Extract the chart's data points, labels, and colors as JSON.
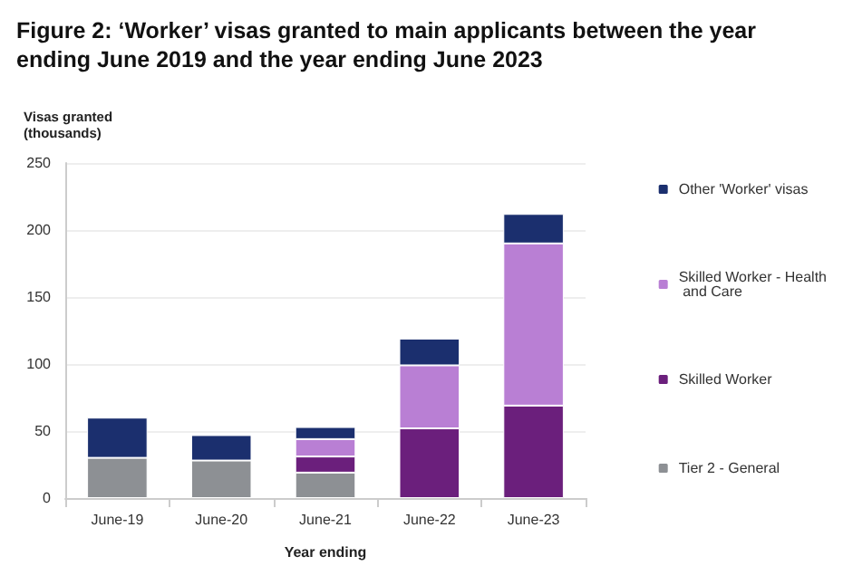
{
  "chart_data": {
    "type": "bar",
    "title": "Figure 2: ‘Worker’ visas granted to main applicants between the year ending June 2019 and the year ending June 2023",
    "xlabel": "Year ending",
    "ylabel": "Visas granted\n(thousands)",
    "categories": [
      "June-19",
      "June-20",
      "June-21",
      "June-22",
      "June-23"
    ],
    "series": [
      {
        "name": "Tier 2 - General",
        "color": "#8d9094",
        "values": [
          30,
          28,
          19,
          null,
          null
        ]
      },
      {
        "name": "Skilled Worker",
        "color": "#6b1f7c",
        "values": [
          null,
          null,
          12,
          52,
          69
        ]
      },
      {
        "name": "Skilled Worker - Health and Care",
        "color": "#b97fd4",
        "values": [
          null,
          null,
          13,
          47,
          121
        ]
      },
      {
        "name": "Other 'Worker' visas",
        "color": "#1b2f6e",
        "values": [
          30,
          19,
          9,
          20,
          22
        ]
      }
    ],
    "stacked": true,
    "ylim": [
      0,
      250
    ],
    "yticks": [
      0,
      50,
      100,
      150,
      200,
      250
    ],
    "grid": "y",
    "legend": "right"
  }
}
